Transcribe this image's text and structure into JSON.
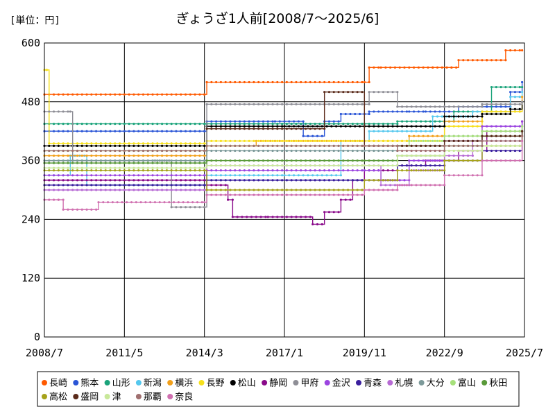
{
  "chart_data": {
    "type": "line",
    "title": "ぎょうざ1人前[2008/7～2025/6]",
    "unit_label": "[単位：円]",
    "ylim": [
      0,
      600
    ],
    "y_ticks": [
      "0",
      "120",
      "240",
      "360",
      "480",
      "600"
    ],
    "x_ticks": [
      "2008/7",
      "2011/5",
      "2014/3",
      "2017/1",
      "2019/11",
      "2022/9",
      "2025/7"
    ],
    "grid": true,
    "legend_position": "bottom",
    "series": [
      {
        "name": "長崎",
        "color": "#ff5a00",
        "x": [
          "2008/7",
          "2014/3",
          "2014/4",
          "2019/11",
          "2020/1",
          "2020/6",
          "2022/4",
          "2022/12",
          "2023/3",
          "2024/3",
          "2024/11",
          "2025/6"
        ],
        "y": [
          495,
          495,
          520,
          520,
          550,
          550,
          550,
          550,
          565,
          565,
          585,
          585
        ]
      },
      {
        "name": "熊本",
        "color": "#2a55d6",
        "x": [
          "2008/7",
          "2014/3",
          "2014/4",
          "2016/9",
          "2017/9",
          "2018/6",
          "2019/1",
          "2020/1",
          "2021/6",
          "2022/1",
          "2023/3",
          "2024/3",
          "2025/1",
          "2025/6"
        ],
        "y": [
          420,
          420,
          440,
          440,
          410,
          440,
          455,
          460,
          460,
          460,
          470,
          470,
          500,
          520
        ]
      },
      {
        "name": "山形",
        "color": "#1aa37a",
        "x": [
          "2008/7",
          "2014/3",
          "2014/4",
          "2019/11",
          "2021/1",
          "2023/1",
          "2024/5",
          "2025/6"
        ],
        "y": [
          435,
          435,
          435,
          435,
          440,
          460,
          510,
          510
        ]
      },
      {
        "name": "新潟",
        "color": "#55c8ee",
        "x": [
          "2008/7",
          "2009/6",
          "2010/1",
          "2014/3",
          "2014/4",
          "2017/1",
          "2019/1",
          "2020/1",
          "2022/4",
          "2023/9",
          "2025/1",
          "2025/6"
        ],
        "y": [
          330,
          370,
          310,
          310,
          330,
          330,
          400,
          420,
          450,
          460,
          490,
          500
        ]
      },
      {
        "name": "横浜",
        "color": "#f2a01a",
        "x": [
          "2008/7",
          "2014/3",
          "2014/4",
          "2016/1",
          "2019/11",
          "2021/6",
          "2022/9",
          "2024/1",
          "2025/6"
        ],
        "y": [
          370,
          370,
          390,
          400,
          400,
          410,
          440,
          460,
          490
        ]
      },
      {
        "name": "長野",
        "color": "#f6e01c",
        "x": [
          "2008/7",
          "2008/8",
          "2008/9",
          "2014/3",
          "2014/4",
          "2019/11",
          "2022/9",
          "2024/1",
          "2025/6"
        ],
        "y": [
          545,
          545,
          395,
          395,
          400,
          400,
          430,
          460,
          480
        ]
      },
      {
        "name": "松山",
        "color": "#000000",
        "x": [
          "2008/7",
          "2014/3",
          "2014/4",
          "2017/1",
          "2019/11",
          "2022/9",
          "2024/1",
          "2025/1",
          "2025/6"
        ],
        "y": [
          390,
          390,
          430,
          430,
          430,
          450,
          455,
          465,
          480
        ]
      },
      {
        "name": "静岡",
        "color": "#8a0a8a",
        "x": [
          "2008/7",
          "2014/3",
          "2014/4",
          "2015/1",
          "2015/3",
          "2016/6",
          "2017/6",
          "2018/1",
          "2018/6",
          "2019/1",
          "2019/6",
          "2019/11",
          "2021/1",
          "2022/1",
          "2023/3",
          "2024/3",
          "2025/6"
        ],
        "y": [
          320,
          320,
          310,
          280,
          245,
          245,
          245,
          230,
          255,
          280,
          320,
          340,
          350,
          360,
          380,
          420,
          440
        ]
      },
      {
        "name": "甲府",
        "color": "#8e8e96",
        "x": [
          "2008/7",
          "2009/6",
          "2009/7",
          "2012/6",
          "2013/1",
          "2014/3",
          "2014/4",
          "2019/11",
          "2020/1",
          "2021/1",
          "2022/9",
          "2024/1",
          "2025/6"
        ],
        "y": [
          460,
          460,
          360,
          360,
          265,
          265,
          475,
          475,
          500,
          470,
          470,
          475,
          480
        ]
      },
      {
        "name": "金沢",
        "color": "#9b44e0",
        "x": [
          "2008/7",
          "2014/3",
          "2014/4",
          "2019/11",
          "2020/6",
          "2021/6",
          "2022/9",
          "2024/1",
          "2025/6"
        ],
        "y": [
          330,
          330,
          340,
          340,
          320,
          360,
          400,
          430,
          440
        ]
      },
      {
        "name": "青森",
        "color": "#3a1f9e",
        "x": [
          "2008/7",
          "2014/3",
          "2014/4",
          "2019/11",
          "2021/1",
          "2022/9",
          "2024/1",
          "2025/6"
        ],
        "y": [
          310,
          310,
          320,
          320,
          350,
          360,
          380,
          420
        ]
      },
      {
        "name": "札幌",
        "color": "#b76ad4",
        "x": [
          "2008/7",
          "2014/3",
          "2014/4",
          "2019/11",
          "2020/6",
          "2021/6",
          "2022/9",
          "2023/9",
          "2025/6"
        ],
        "y": [
          300,
          300,
          350,
          350,
          310,
          340,
          370,
          400,
          410
        ]
      },
      {
        "name": "大分",
        "color": "#7d9a9a",
        "x": [
          "2008/7",
          "2014/3",
          "2014/4",
          "2019/11",
          "2021/1",
          "2022/9",
          "2024/1",
          "2025/6"
        ],
        "y": [
          360,
          360,
          380,
          380,
          390,
          410,
          420,
          430
        ]
      },
      {
        "name": "富山",
        "color": "#a6e07a",
        "x": [
          "2008/7",
          "2014/3",
          "2014/4",
          "2019/11",
          "2021/6",
          "2022/9",
          "2024/1",
          "2025/6"
        ],
        "y": [
          380,
          380,
          390,
          390,
          400,
          410,
          420,
          430
        ]
      },
      {
        "name": "秋田",
        "color": "#5a9a3a",
        "x": [
          "2008/7",
          "2014/3",
          "2014/4",
          "2019/11",
          "2021/1",
          "2022/9",
          "2024/1",
          "2025/6"
        ],
        "y": [
          355,
          355,
          360,
          360,
          370,
          390,
          410,
          420
        ]
      },
      {
        "name": "高松",
        "color": "#a6a21a",
        "x": [
          "2008/7",
          "2014/3",
          "2014/4",
          "2019/11",
          "2021/1",
          "2022/9",
          "2024/1",
          "2025/6"
        ],
        "y": [
          340,
          340,
          300,
          320,
          340,
          360,
          390,
          410
        ]
      },
      {
        "name": "盛岡",
        "color": "#5a2a1a",
        "x": [
          "2014/4",
          "2018/6",
          "2019/11",
          "2021/1",
          "2022/9",
          "2024/1",
          "2025/6"
        ],
        "y": [
          425,
          500,
          390,
          390,
          400,
          410,
          420
        ]
      },
      {
        "name": "津",
        "color": "#c8e89a",
        "x": [
          "2008/7",
          "2014/3",
          "2014/4",
          "2019/11",
          "2021/1",
          "2022/9",
          "2024/1",
          "2025/6"
        ],
        "y": [
          345,
          345,
          350,
          350,
          370,
          380,
          390,
          400
        ]
      },
      {
        "name": "那覇",
        "color": "#a07070",
        "x": [
          "2008/7",
          "2014/3",
          "2014/4",
          "2019/11",
          "2021/1",
          "2022/9",
          "2024/1",
          "2025/6"
        ],
        "y": [
          380,
          380,
          390,
          390,
          380,
          390,
          400,
          410
        ]
      },
      {
        "name": "奈良",
        "color": "#d070b0",
        "x": [
          "2008/7",
          "2009/1",
          "2009/3",
          "2010/6",
          "2014/3",
          "2014/4",
          "2019/11",
          "2021/1",
          "2022/9",
          "2024/1",
          "2025/6"
        ],
        "y": [
          280,
          280,
          260,
          275,
          275,
          290,
          300,
          310,
          330,
          360,
          400
        ]
      }
    ]
  }
}
